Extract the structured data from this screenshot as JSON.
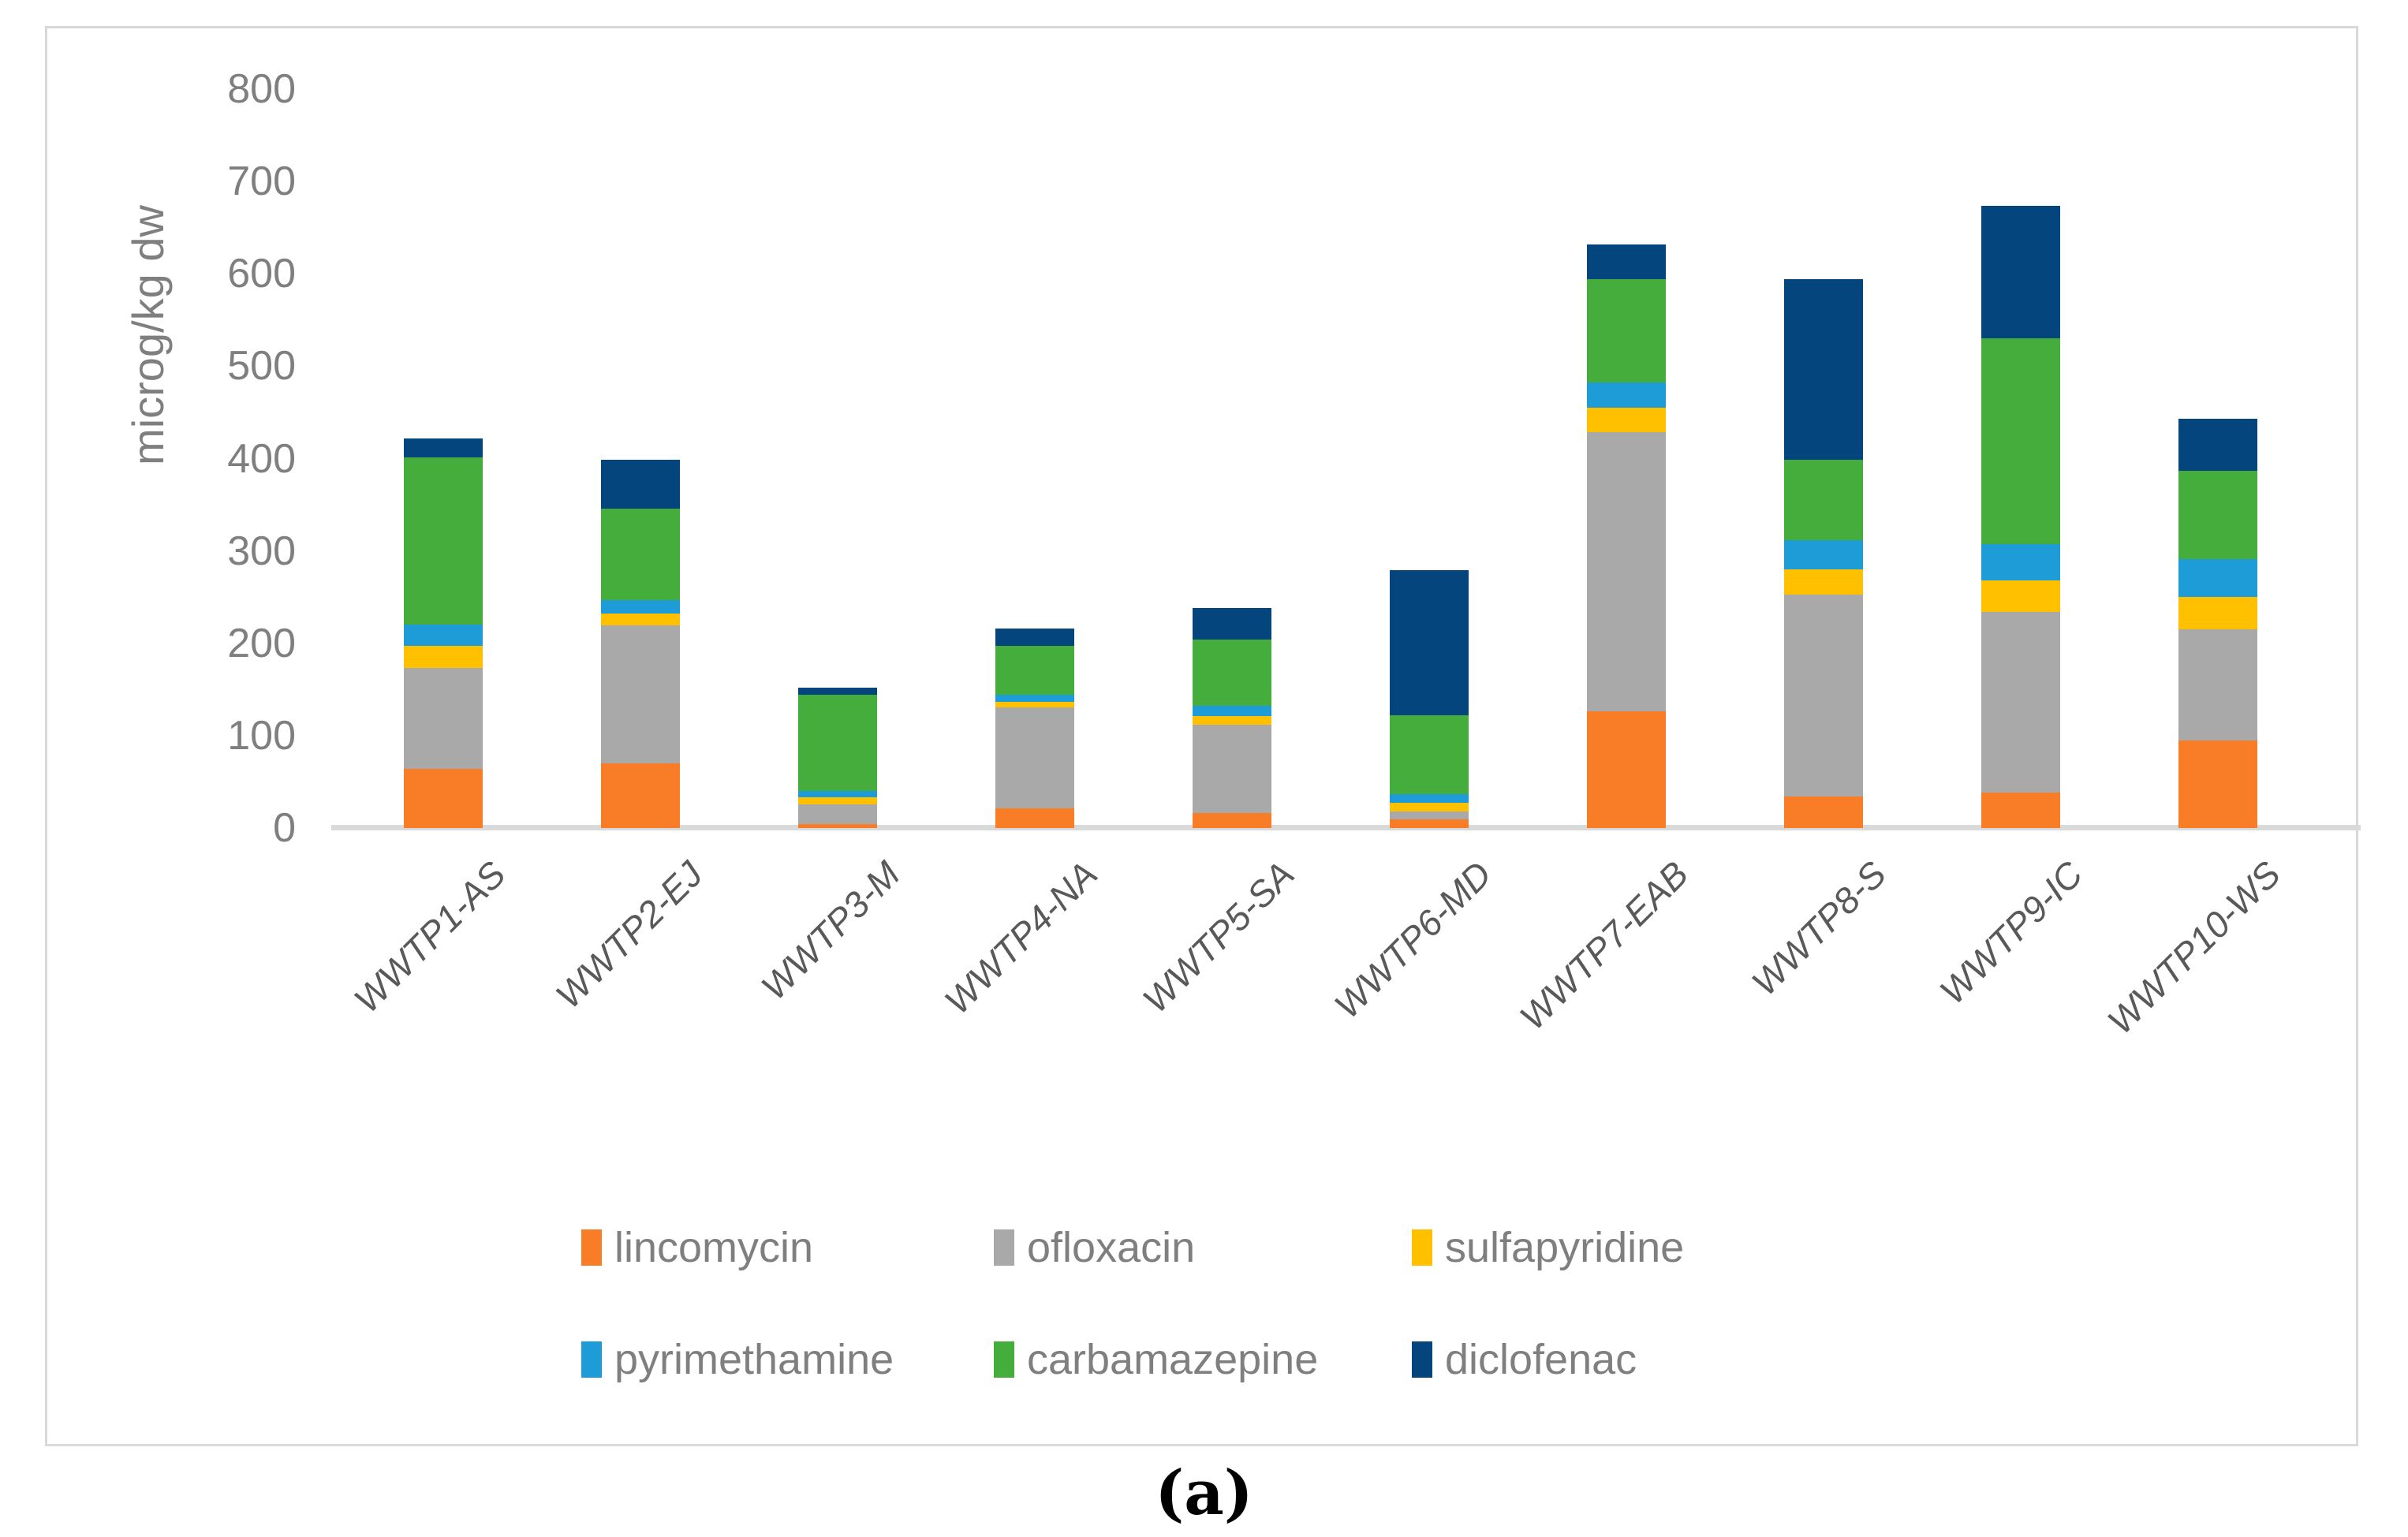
{
  "figure": {
    "caption": "(a)",
    "frame_color": "#D9D9D9",
    "background": "#FFFFFF"
  },
  "chart_data": {
    "type": "bar",
    "stacked": true,
    "title": "",
    "xlabel": "",
    "ylabel": "microg/kg dw",
    "ylim": [
      0,
      800
    ],
    "ytick_interval": 100,
    "ytick_labels": [
      "0",
      "100",
      "200",
      "300",
      "400",
      "500",
      "600",
      "700",
      "800"
    ],
    "grid": false,
    "legend_position": "bottom",
    "axis_color": "#D9D9D9",
    "tick_label_color": "#7F7F7F",
    "category_label_color": "#595959",
    "categories": [
      "WWTP1-AS",
      "WWTP2-EJ",
      "WWTP3-M",
      "WWTP4-NA",
      "WWTP5-SA",
      "WWTP6-MD",
      "WWTP7-EAB",
      "WWTP8-S",
      "WWTP9-IC",
      "WWTP10-WS"
    ],
    "series": [
      {
        "name": "lincomycin",
        "color": "#F97D27",
        "values": [
          64,
          70,
          4,
          21,
          16,
          9,
          126,
          34,
          38,
          95
        ]
      },
      {
        "name": "ofloxacin",
        "color": "#A9A9A9",
        "values": [
          109,
          149,
          22,
          110,
          96,
          9,
          303,
          219,
          196,
          120
        ]
      },
      {
        "name": "sulfapyridine",
        "color": "#FFC000",
        "values": [
          24,
          13,
          7,
          6,
          9,
          9,
          26,
          27,
          34,
          35
        ]
      },
      {
        "name": "pyrimethamine",
        "color": "#1E9CD8",
        "values": [
          23,
          15,
          7,
          7,
          11,
          10,
          27,
          32,
          39,
          41
        ]
      },
      {
        "name": "carbamazepine",
        "color": "#45AD3C",
        "values": [
          181,
          99,
          104,
          53,
          72,
          85,
          112,
          87,
          223,
          96
        ]
      },
      {
        "name": "diclofenac",
        "color": "#03457C",
        "values": [
          21,
          53,
          8,
          19,
          34,
          157,
          38,
          195,
          144,
          56
        ]
      }
    ]
  }
}
